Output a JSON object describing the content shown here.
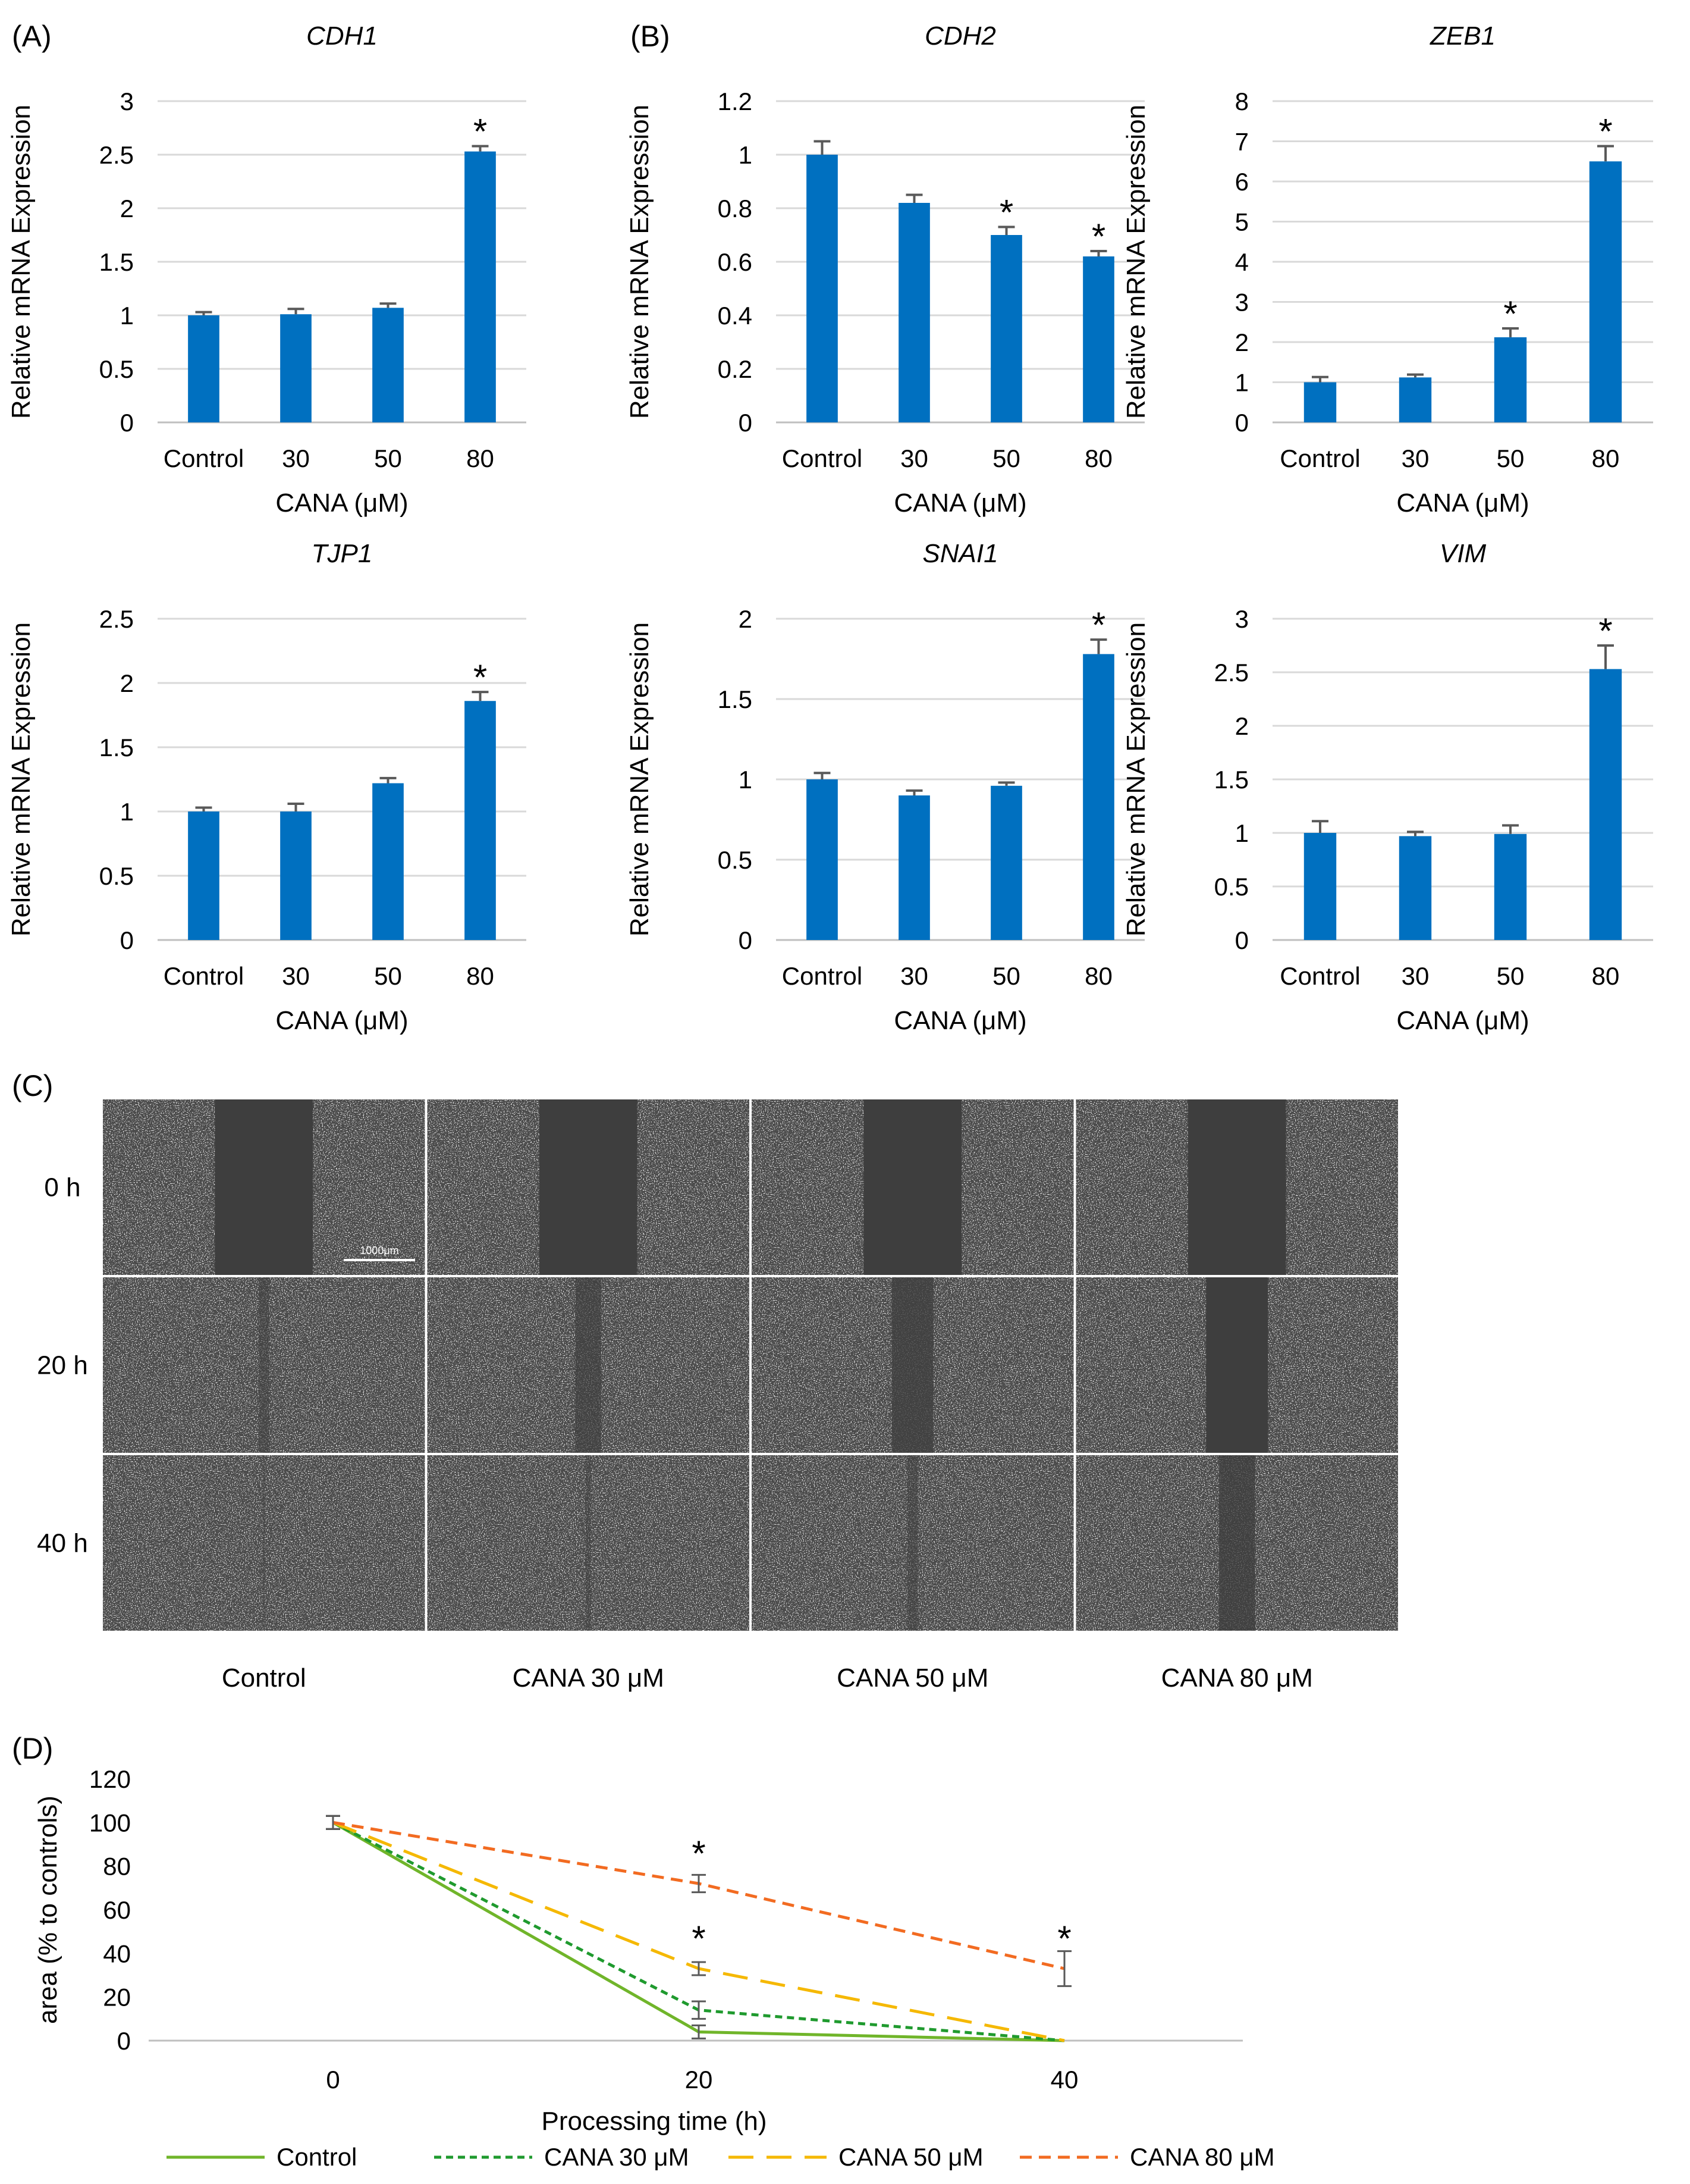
{
  "panel_labels": [
    "(A)",
    "(B)",
    "(C)",
    "(D)"
  ],
  "colors": {
    "bar": "#0070C0",
    "error": "#595959",
    "grid": "#D9D9D9",
    "axis": "#BFBFBF",
    "micro_bg": "#4a4a4a",
    "micro_gap": "#3e3e3e",
    "control": "#70B52A",
    "cana30": "#1F9A2E",
    "cana50": "#F5B800",
    "cana80": "#F26B21"
  },
  "bar_charts": [
    {
      "title": "CDH1",
      "ylabel": "Relative mRNA Expression",
      "xlabel": "CANA (μM)",
      "categories": [
        "Control",
        "30",
        "50",
        "80"
      ],
      "yticks": [
        "0",
        "0.5",
        "1",
        "1.5",
        "2",
        "2.5",
        "3"
      ],
      "ymax": 3,
      "values": [
        1.0,
        1.01,
        1.07,
        2.53
      ],
      "errors": [
        0.03,
        0.05,
        0.04,
        0.05
      ],
      "significance": [
        "",
        "",
        "",
        "*"
      ]
    },
    {
      "title": "CDH2",
      "ylabel": "Relative mRNA Expression",
      "xlabel": "CANA (μM)",
      "categories": [
        "Control",
        "30",
        "50",
        "80"
      ],
      "yticks": [
        "0",
        "0.2",
        "0.4",
        "0.6",
        "0.8",
        "1",
        "1.2"
      ],
      "ymax": 1.2,
      "values": [
        1.0,
        0.82,
        0.7,
        0.62
      ],
      "errors": [
        0.05,
        0.03,
        0.03,
        0.02
      ],
      "significance": [
        "",
        "",
        "*",
        "*"
      ]
    },
    {
      "title": "ZEB1",
      "ylabel": "Relative mRNA Expression",
      "xlabel": "CANA (μM)",
      "categories": [
        "Control",
        "30",
        "50",
        "80"
      ],
      "yticks": [
        "0",
        "1",
        "2",
        "3",
        "4",
        "5",
        "6",
        "7",
        "8"
      ],
      "ymax": 8,
      "values": [
        1.0,
        1.12,
        2.12,
        6.5
      ],
      "errors": [
        0.13,
        0.07,
        0.22,
        0.38
      ],
      "significance": [
        "",
        "",
        "*",
        "*"
      ]
    },
    {
      "title": "TJP1",
      "ylabel": "Relative mRNA Expression",
      "xlabel": "CANA (μM)",
      "categories": [
        "Control",
        "30",
        "50",
        "80"
      ],
      "yticks": [
        "0",
        "0.5",
        "1",
        "1.5",
        "2",
        "2.5"
      ],
      "ymax": 2.5,
      "values": [
        1.0,
        1.0,
        1.22,
        1.86
      ],
      "errors": [
        0.03,
        0.06,
        0.04,
        0.07
      ],
      "significance": [
        "",
        "",
        "",
        "*"
      ]
    },
    {
      "title": "SNAI1",
      "ylabel": "Relative mRNA Expression",
      "xlabel": "CANA (μM)",
      "categories": [
        "Control",
        "30",
        "50",
        "80"
      ],
      "yticks": [
        "0",
        "0.5",
        "1",
        "1.5",
        "2"
      ],
      "ymax": 2,
      "values": [
        1.0,
        0.9,
        0.96,
        1.78
      ],
      "errors": [
        0.04,
        0.03,
        0.02,
        0.09
      ],
      "significance": [
        "",
        "",
        "",
        "*"
      ]
    },
    {
      "title": "VIM",
      "ylabel": "Relative mRNA Expression",
      "xlabel": "CANA (μM)",
      "categories": [
        "Control",
        "30",
        "50",
        "80"
      ],
      "yticks": [
        "0",
        "0.5",
        "1",
        "1.5",
        "2",
        "2.5",
        "3"
      ],
      "ymax": 3,
      "values": [
        1.0,
        0.97,
        0.99,
        2.53
      ],
      "errors": [
        0.11,
        0.04,
        0.08,
        0.22
      ],
      "significance": [
        "",
        "",
        "",
        "*"
      ]
    }
  ],
  "wound_assay": {
    "rows": [
      "0 h",
      "20 h",
      "40 h"
    ],
    "columns": [
      "Control",
      "CANA 30 μM",
      "CANA 50 μM",
      "CANA 80 μM"
    ],
    "gap_fraction": [
      [
        0.95,
        0.95,
        0.95,
        0.95
      ],
      [
        0.1,
        0.25,
        0.4,
        0.6
      ],
      [
        0.02,
        0.05,
        0.1,
        0.35
      ]
    ],
    "scale_bar": "1000μm"
  },
  "chart_data": {
    "type": "line",
    "x": [
      0,
      20,
      40
    ],
    "xticks": [
      "0",
      "20",
      "40"
    ],
    "yticks": [
      "0",
      "20",
      "40",
      "60",
      "80",
      "100",
      "120"
    ],
    "ylim": [
      0,
      120
    ],
    "xlabel": "Processing time (h)",
    "ylabel": "area (% to controls)",
    "legend_position": "bottom",
    "series": [
      {
        "name": "Control",
        "values": [
          100,
          4,
          0
        ],
        "errors": [
          3,
          3,
          0
        ],
        "dash": "solid",
        "color_key": "control"
      },
      {
        "name": "CANA 30 μM",
        "values": [
          100,
          14,
          0
        ],
        "errors": [
          3,
          4,
          0
        ],
        "dash": "short",
        "color_key": "cana30"
      },
      {
        "name": "CANA 50 μM",
        "values": [
          100,
          33,
          0
        ],
        "errors": [
          3,
          3,
          0
        ],
        "dash": "long",
        "color_key": "cana50"
      },
      {
        "name": "CANA 80 μM",
        "values": [
          100,
          72,
          33
        ],
        "errors": [
          3,
          4,
          8
        ],
        "dash": "medium",
        "color_key": "cana80"
      }
    ],
    "significance": [
      {
        "x": 20,
        "y": 72,
        "label": "*"
      },
      {
        "x": 20,
        "y": 33,
        "label": "*"
      },
      {
        "x": 40,
        "y": 33,
        "label": "*"
      }
    ]
  }
}
